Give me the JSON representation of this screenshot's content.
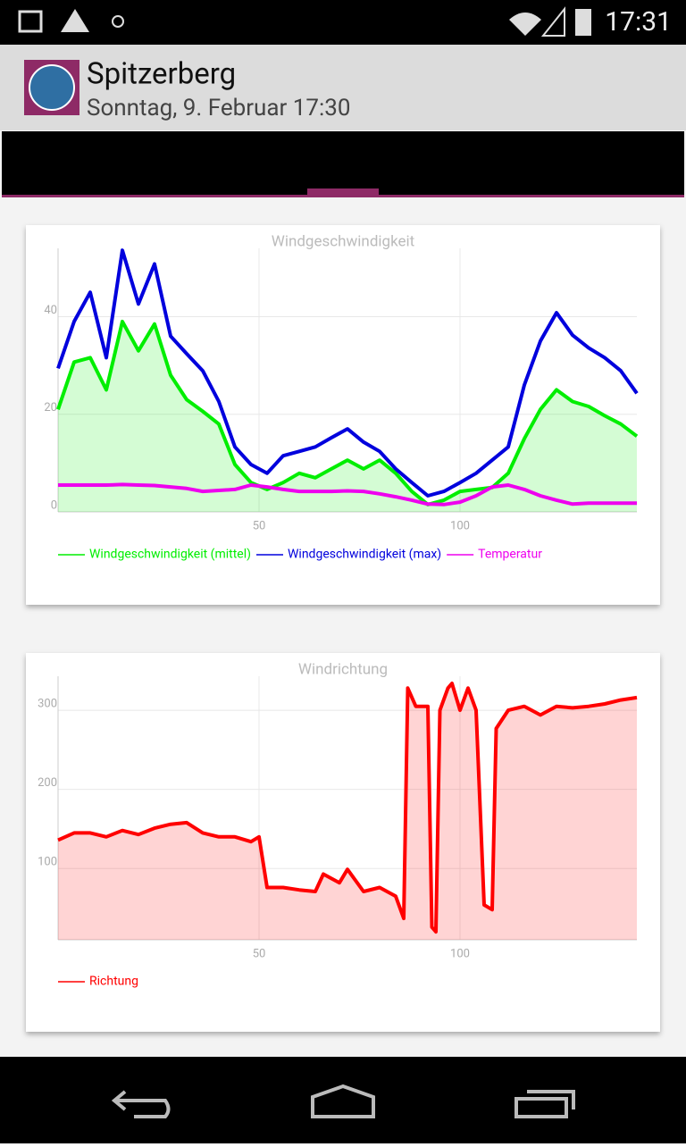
{
  "status_bar": {
    "time": "17:31"
  },
  "header": {
    "title": "Spitzerberg",
    "subtitle": "Sonntag, 9. Februar 17:30"
  },
  "chart_data": [
    {
      "type": "line",
      "title": "Windgeschwindigkeit",
      "x": [
        0,
        4,
        8,
        12,
        16,
        20,
        24,
        28,
        32,
        36,
        40,
        44,
        48,
        52,
        56,
        60,
        64,
        68,
        72,
        76,
        80,
        84,
        88,
        92,
        96,
        100,
        104,
        108,
        112,
        116,
        120,
        124,
        128,
        132,
        136,
        140,
        144
      ],
      "xlim": [
        0,
        144
      ],
      "xticks": [
        50,
        100
      ],
      "ylim": [
        0,
        54
      ],
      "yticks": [
        0,
        20,
        40
      ],
      "grid": true,
      "series": [
        {
          "name": "Windgeschwindigkeit (mittel)",
          "color": "#00ee00",
          "area": true,
          "values": [
            21,
            30.7,
            31.6,
            25,
            39,
            33,
            38.5,
            28,
            23,
            20.6,
            18,
            9.7,
            6,
            4.6,
            6,
            7.9,
            7,
            8.8,
            10.6,
            8.8,
            10.6,
            7.9,
            4.2,
            1.5,
            2.4,
            4.2,
            4.6,
            5,
            7.9,
            15,
            21,
            25,
            22.6,
            21.6,
            19.7,
            18,
            15.5
          ]
        },
        {
          "name": "Windgeschwindigkeit (max)",
          "color": "#0000dd",
          "values": [
            29.4,
            39,
            45,
            31.6,
            53.6,
            42.6,
            50.8,
            36,
            32.4,
            28.9,
            22.6,
            13.3,
            9.7,
            7.9,
            11.5,
            12.4,
            13.3,
            15.2,
            17,
            14.3,
            12.4,
            8.8,
            6,
            3.3,
            4.2,
            6,
            7.9,
            10.6,
            13.3,
            26,
            35,
            40.8,
            36.2,
            33.6,
            31.6,
            28.9,
            24.3
          ]
        },
        {
          "name": "Temperatur",
          "color": "#ee00ee",
          "values": [
            5.5,
            5.5,
            5.5,
            5.5,
            5.6,
            5.5,
            5.4,
            5.1,
            4.8,
            4.2,
            4.4,
            4.6,
            5.5,
            5.1,
            4.6,
            4.2,
            4.2,
            4.2,
            4.3,
            4.2,
            3.7,
            3.1,
            2.4,
            1.6,
            1.5,
            2,
            3.3,
            5.1,
            5.5,
            4.6,
            3.3,
            2.4,
            1.6,
            1.8,
            1.8,
            1.8,
            1.8
          ]
        }
      ]
    },
    {
      "type": "line",
      "title": "Windrichtung",
      "x": [
        0,
        4,
        8,
        12,
        16,
        20,
        24,
        28,
        32,
        36,
        40,
        44,
        48,
        50,
        52,
        56,
        60,
        64,
        66,
        70,
        72,
        76,
        80,
        84,
        86,
        87,
        89,
        92,
        93,
        94,
        95,
        97,
        98,
        100,
        102,
        104,
        106,
        108,
        109,
        112,
        116,
        120,
        124,
        128,
        132,
        136,
        140,
        144
      ],
      "xlim": [
        0,
        144
      ],
      "xticks": [
        50,
        100
      ],
      "ylim": [
        10,
        343
      ],
      "yticks": [
        100,
        200,
        300
      ],
      "grid": true,
      "series": [
        {
          "name": "Richtung",
          "color": "#ff0000",
          "area": true,
          "values": [
            136,
            145,
            145,
            140,
            148,
            143,
            151,
            156,
            158,
            145,
            140,
            140,
            134,
            140,
            76,
            76,
            73,
            71,
            93,
            82,
            99,
            71,
            76,
            65,
            37,
            328,
            305,
            305,
            26,
            20,
            300,
            328,
            334,
            300,
            328,
            300,
            54,
            48,
            277,
            300,
            305,
            294,
            305,
            303,
            305,
            308,
            313,
            316
          ]
        }
      ]
    }
  ]
}
